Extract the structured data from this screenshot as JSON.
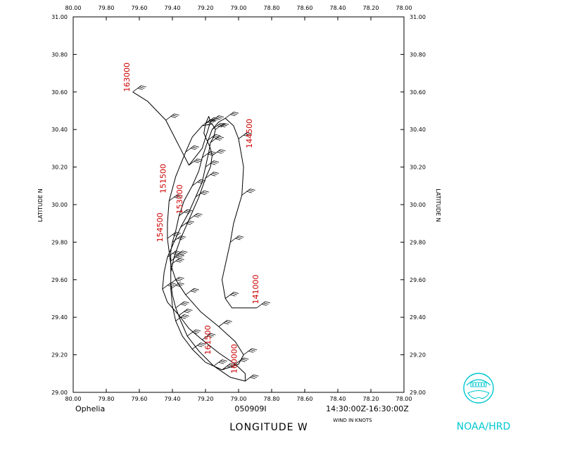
{
  "chart_data": {
    "type": "track",
    "xlabel": "LONGITUDE  W",
    "ylabel": "LATITUDE  N",
    "xlim": [
      80.0,
      78.0
    ],
    "ylim": [
      29.0,
      31.0
    ],
    "x_ticks": [
      "80.00",
      "79.80",
      "79.60",
      "79.40",
      "79.20",
      "79.00",
      "78.80",
      "78.60",
      "78.40",
      "78.20",
      "78.00"
    ],
    "y_ticks": [
      "29.00",
      "29.20",
      "29.40",
      "29.60",
      "29.80",
      "30.00",
      "30.20",
      "30.40",
      "30.60",
      "30.80",
      "31.00"
    ],
    "track_lon": [
      78.89,
      79.04,
      79.08,
      79.1,
      79.05,
      79.03,
      78.98,
      78.97,
      79.0,
      79.03,
      79.08,
      79.12,
      79.16,
      79.19,
      79.22,
      79.24,
      79.28,
      79.33,
      79.36,
      79.38,
      79.4,
      79.41,
      79.41,
      79.41,
      79.41,
      79.4,
      79.38,
      79.35,
      79.31,
      79.24,
      79.15,
      79.05,
      78.96,
      78.96,
      79.02,
      79.12,
      79.22,
      79.3,
      79.36,
      79.43,
      79.46,
      79.45,
      79.43,
      79.39,
      79.35,
      79.3,
      79.26,
      79.22,
      79.2,
      79.18,
      79.17,
      79.15,
      79.14,
      79.16,
      79.22,
      79.28,
      79.32,
      79.38,
      79.42,
      79.43,
      79.43,
      79.42,
      79.41,
      79.38,
      79.32,
      79.23,
      79.12,
      79.02,
      78.97,
      79.0,
      79.1,
      79.2,
      79.28,
      79.34,
      79.38,
      79.4,
      79.41,
      79.41,
      79.39,
      79.35,
      79.3,
      79.24,
      79.2,
      79.17,
      79.16,
      79.17,
      79.19,
      79.21,
      79.2,
      79.18,
      79.17,
      79.22,
      79.3,
      79.37,
      79.44,
      79.55,
      79.64
    ],
    "track_lat": [
      29.45,
      29.45,
      29.5,
      29.6,
      29.8,
      29.9,
      30.05,
      30.2,
      30.35,
      30.42,
      30.46,
      30.44,
      30.4,
      30.33,
      30.25,
      30.18,
      30.1,
      30.02,
      29.94,
      29.86,
      29.8,
      29.75,
      29.7,
      29.65,
      29.58,
      29.52,
      29.45,
      29.38,
      29.3,
      29.22,
      29.14,
      29.08,
      29.06,
      29.1,
      29.15,
      29.21,
      29.28,
      29.34,
      29.41,
      29.48,
      29.55,
      29.64,
      29.72,
      29.8,
      29.88,
      29.96,
      30.04,
      30.12,
      30.2,
      30.28,
      30.33,
      30.36,
      30.4,
      30.43,
      30.42,
      30.36,
      30.28,
      30.15,
      30.02,
      29.9,
      29.82,
      29.75,
      29.68,
      29.6,
      29.52,
      29.43,
      29.35,
      29.27,
      29.2,
      29.15,
      29.12,
      29.16,
      29.23,
      29.3,
      29.38,
      29.46,
      29.55,
      29.64,
      29.72,
      29.82,
      29.92,
      30.04,
      30.14,
      30.2,
      30.26,
      30.3,
      30.34,
      30.38,
      30.43,
      30.47,
      30.44,
      30.3,
      30.21,
      30.33,
      30.45,
      30.55,
      30.6
    ],
    "barb_every": 2,
    "time_labels": [
      {
        "text": "163000",
        "lon": 79.66,
        "lat": 30.6
      },
      {
        "text": "144500",
        "lon": 78.92,
        "lat": 30.3
      },
      {
        "text": "141000",
        "lon": 78.88,
        "lat": 29.47
      },
      {
        "text": "151500",
        "lon": 79.44,
        "lat": 30.06
      },
      {
        "text": "153000",
        "lon": 79.34,
        "lat": 29.95
      },
      {
        "text": "154500",
        "lon": 79.46,
        "lat": 29.8
      },
      {
        "text": "161500",
        "lon": 79.17,
        "lat": 29.2
      },
      {
        "text": "160000",
        "lon": 79.01,
        "lat": 29.1
      }
    ]
  },
  "footer": {
    "storm": "Ophelia",
    "date_code": "050909I",
    "time_range": "14:30:00Z-16:30:00Z",
    "wind_note": "WIND IN KNOTS",
    "logo_text": "NOAA/HRD"
  },
  "colors": {
    "time_labels": "#cc0000",
    "logo": "#00c8d0"
  }
}
